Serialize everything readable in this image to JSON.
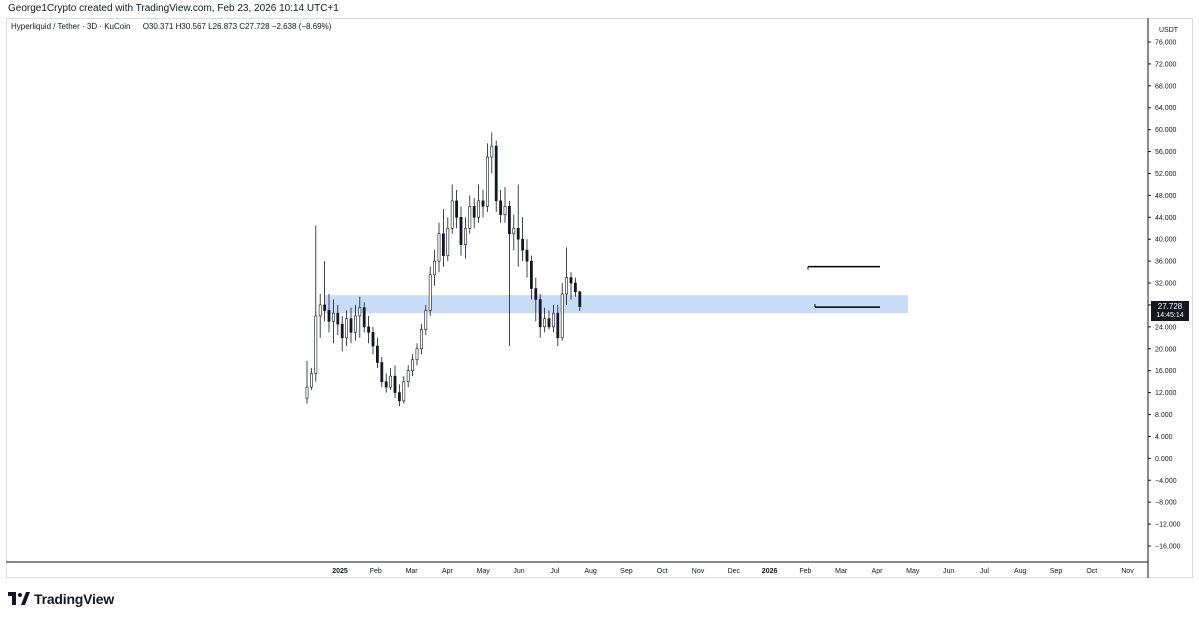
{
  "header": {
    "credit": "George1Crypto created with TradingView.com, Feb 23, 2026 10:14 UTC+1"
  },
  "legend": {
    "symbol": "Hyperliquid / Tether · 3D · KuCoin",
    "open": "O30.371",
    "high": "H30.567",
    "low": "L26.873",
    "close": "C27.728",
    "change": "−2.638 (−8.69%)"
  },
  "price_axis": {
    "currency": "USDT",
    "last_price": "27.728",
    "countdown": "14:45:14"
  },
  "brand": {
    "name": "TradingView",
    "icon": "tradingview-logo-icon"
  },
  "colors": {
    "candle": "#131722",
    "zone": "#c9dcf7",
    "box": "#000000",
    "background": "#ffffff"
  },
  "chart_data": {
    "type": "candlestick",
    "symbol": "Hyperliquid / Tether",
    "interval": "3D",
    "exchange": "KuCoin",
    "y_ticks": [
      "76.000",
      "72.000",
      "68.000",
      "64.000",
      "60.000",
      "56.000",
      "52.000",
      "48.000",
      "44.000",
      "40.000",
      "36.000",
      "32.000",
      "28.000",
      "24.000",
      "20.000",
      "16.000",
      "12.000",
      "8.000",
      "4.000",
      "0.000",
      "−4.000",
      "−8.000",
      "−12.000",
      "−16.000"
    ],
    "ylim": [
      -18,
      78
    ],
    "x_ticks": [
      {
        "label": "2025",
        "bold": true
      },
      {
        "label": "Feb"
      },
      {
        "label": "Mar"
      },
      {
        "label": "Apr"
      },
      {
        "label": "May"
      },
      {
        "label": "Jun"
      },
      {
        "label": "Jul"
      },
      {
        "label": "Aug"
      },
      {
        "label": "Sep"
      },
      {
        "label": "Oct"
      },
      {
        "label": "Nov"
      },
      {
        "label": "Dec"
      },
      {
        "label": "2026",
        "bold": true
      },
      {
        "label": "Feb"
      },
      {
        "label": "Mar"
      },
      {
        "label": "Apr"
      },
      {
        "label": "May"
      },
      {
        "label": "Jun"
      },
      {
        "label": "Jul"
      },
      {
        "label": "Aug"
      },
      {
        "label": "Sep"
      },
      {
        "label": "Oct"
      },
      {
        "label": "Nov"
      }
    ],
    "ohlc_approx": [
      [
        11.0,
        17.8,
        10.0,
        13.0
      ],
      [
        13.0,
        16.5,
        12.5,
        15.5
      ],
      [
        15.5,
        42.5,
        14.0,
        26.0
      ],
      [
        26.0,
        30.0,
        22.0,
        28.0
      ],
      [
        28.0,
        36.0,
        25.0,
        27.0
      ],
      [
        27.0,
        30.0,
        23.0,
        25.0
      ],
      [
        25.0,
        29.0,
        21.0,
        26.5
      ],
      [
        26.5,
        28.0,
        22.5,
        24.5
      ],
      [
        24.5,
        26.0,
        19.5,
        22.0
      ],
      [
        22.0,
        27.0,
        20.5,
        25.5
      ],
      [
        25.5,
        27.5,
        21.0,
        23.0
      ],
      [
        23.0,
        28.0,
        21.5,
        26.0
      ],
      [
        26.0,
        29.5,
        22.0,
        27.5
      ],
      [
        27.5,
        28.5,
        23.0,
        24.0
      ],
      [
        24.0,
        26.0,
        21.0,
        23.0
      ],
      [
        23.0,
        24.0,
        19.0,
        20.5
      ],
      [
        20.5,
        22.0,
        16.5,
        17.5
      ],
      [
        17.5,
        18.5,
        13.0,
        14.0
      ],
      [
        14.0,
        15.5,
        12.0,
        13.0
      ],
      [
        13.0,
        16.5,
        12.5,
        15.0
      ],
      [
        15.0,
        17.0,
        11.0,
        12.0
      ],
      [
        12.0,
        13.5,
        9.5,
        10.5
      ],
      [
        10.5,
        15.0,
        10.0,
        14.0
      ],
      [
        14.0,
        17.0,
        13.0,
        16.0
      ],
      [
        16.0,
        19.0,
        15.0,
        18.0
      ],
      [
        18.0,
        21.0,
        17.0,
        20.0
      ],
      [
        20.0,
        24.5,
        19.0,
        23.5
      ],
      [
        23.5,
        28.0,
        22.5,
        27.0
      ],
      [
        27.0,
        35.0,
        26.0,
        33.5
      ],
      [
        33.5,
        38.0,
        31.5,
        36.0
      ],
      [
        36.0,
        43.0,
        34.0,
        41.0
      ],
      [
        41.0,
        45.5,
        35.0,
        37.0
      ],
      [
        37.0,
        44.0,
        36.0,
        42.0
      ],
      [
        42.0,
        50.0,
        41.0,
        47.0
      ],
      [
        47.0,
        49.0,
        42.0,
        44.0
      ],
      [
        44.0,
        46.0,
        37.0,
        39.0
      ],
      [
        39.0,
        44.0,
        36.5,
        42.0
      ],
      [
        42.0,
        48.0,
        41.0,
        46.0
      ],
      [
        46.0,
        47.5,
        42.0,
        44.0
      ],
      [
        44.0,
        50.0,
        43.0,
        47.0
      ],
      [
        47.0,
        49.0,
        44.0,
        46.0
      ],
      [
        46.0,
        57.5,
        45.0,
        55.0
      ],
      [
        55.0,
        59.5,
        52.0,
        57.0
      ],
      [
        57.0,
        58.0,
        45.0,
        47.0
      ],
      [
        47.0,
        49.0,
        43.0,
        44.5
      ],
      [
        44.5,
        49.5,
        43.0,
        46.0
      ],
      [
        46.0,
        47.0,
        20.5,
        41.0
      ],
      [
        41.0,
        44.5,
        38.0,
        42.0
      ],
      [
        42.0,
        50.0,
        35.0,
        40.0
      ],
      [
        40.0,
        44.0,
        36.0,
        38.0
      ],
      [
        38.0,
        40.0,
        33.0,
        36.0
      ],
      [
        36.0,
        37.0,
        29.0,
        31.0
      ],
      [
        31.0,
        33.0,
        25.0,
        29.0
      ],
      [
        29.0,
        30.0,
        22.0,
        24.0
      ],
      [
        24.0,
        27.5,
        23.0,
        25.5
      ],
      [
        25.5,
        27.0,
        23.5,
        24.0
      ],
      [
        24.0,
        28.0,
        23.0,
        26.5
      ],
      [
        26.5,
        28.0,
        20.5,
        22.0
      ],
      [
        22.0,
        32.0,
        21.5,
        30.0
      ],
      [
        30.0,
        38.5,
        28.0,
        33.0
      ],
      [
        33.0,
        34.0,
        29.0,
        32.0
      ],
      [
        32.0,
        33.0,
        29.5,
        30.4
      ],
      [
        30.4,
        30.6,
        26.9,
        27.7
      ]
    ],
    "annotations": [
      {
        "type": "zone",
        "from": 26.5,
        "to": 29.8,
        "color": "#c9dcf7"
      },
      {
        "type": "box",
        "top": 35.0,
        "bottom": 27.6,
        "color": "#000000"
      }
    ]
  }
}
